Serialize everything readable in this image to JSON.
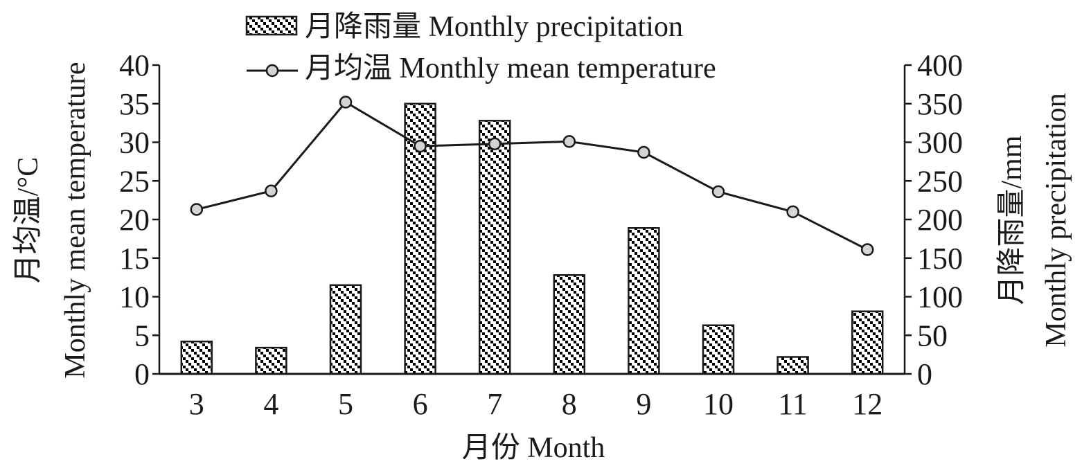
{
  "chart_data": {
    "type": "bar",
    "categories": [
      "3",
      "4",
      "5",
      "6",
      "7",
      "8",
      "9",
      "10",
      "11",
      "12"
    ],
    "series": [
      {
        "name": "月降雨量 Monthly precipitation",
        "kind": "bar",
        "axis": "right",
        "values": [
          42,
          34,
          115,
          350,
          328,
          128,
          189,
          63,
          22,
          81
        ]
      },
      {
        "name": "月均温 Monthly mean temperature",
        "kind": "line",
        "axis": "left",
        "values": [
          21.3,
          23.7,
          35.2,
          29.5,
          29.8,
          30.1,
          28.7,
          23.6,
          21.0,
          16.1
        ]
      }
    ],
    "xlabel": "月份 Month",
    "ylabel_left": [
      "Monthly mean temperature",
      "月均温/°C"
    ],
    "ylabel_right": [
      "月降雨量/mm",
      "Monthly precipitation"
    ],
    "ylim_left": [
      0,
      40
    ],
    "ylim_right": [
      0,
      400
    ],
    "yticks_left": [
      "0",
      "5",
      "10",
      "15",
      "20",
      "25",
      "30",
      "35",
      "40"
    ],
    "yticks_right": [
      "0",
      "50",
      "100",
      "150",
      "200",
      "250",
      "300",
      "350",
      "400"
    ],
    "grid": false,
    "legend_position": "top",
    "bar_fill": "checkered-diagonal",
    "colors": {
      "ink": "#1a1a1a",
      "marker_fill": "#d4d4d4",
      "bar_dark": "#000000"
    }
  }
}
